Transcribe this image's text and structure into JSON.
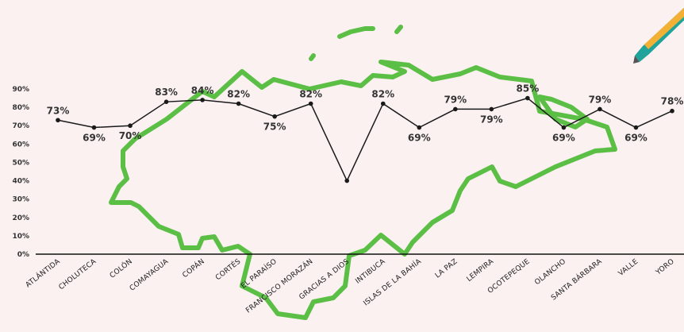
{
  "chart_data": {
    "type": "line",
    "title": "",
    "xlabel": "",
    "ylabel": "",
    "ylim": [
      0,
      90
    ],
    "y_ticks": [
      "0%",
      "10%",
      "20%",
      "30%",
      "40%",
      "50%",
      "60%",
      "70%",
      "80%",
      "90%"
    ],
    "grid": false,
    "categories": [
      "ATLÁNTIDA",
      "CHOLUTECA",
      "COLÓN",
      "COMAYAGUA",
      "COPÁN",
      "CORTÉS",
      "EL PARAÍSO",
      "FRANCISCO MORAZÁN",
      "GRACIAS A DIOS",
      "INTIBUCA",
      "ISLAS DE LA BAHÍA",
      "LA PAZ",
      "LEMPIRA",
      "OCOTEPEQUE",
      "OLANCHO",
      "SANTA BÁRBARA",
      "VALLE",
      "YORO"
    ],
    "series": [
      {
        "values": [
          73,
          69,
          70,
          83,
          84,
          82,
          75,
          82,
          40,
          82,
          69,
          79,
          79,
          85,
          69,
          79,
          69,
          78
        ],
        "labels": [
          "73%",
          "69%",
          "70%",
          "83%",
          "84%",
          "82%",
          "75%",
          "82%",
          "",
          "82%",
          "69%",
          "79%",
          "79%",
          "85%",
          "69%",
          "79%",
          "69%",
          "78%"
        ],
        "color": "#1a1a1a"
      }
    ],
    "background_map": {
      "subject": "map-outline-icon",
      "color": "#5cbf45"
    }
  },
  "decoration": {
    "icon": "pencil-icon",
    "colors": [
      "#f2b134",
      "#1fa39a",
      "#555555"
    ]
  }
}
